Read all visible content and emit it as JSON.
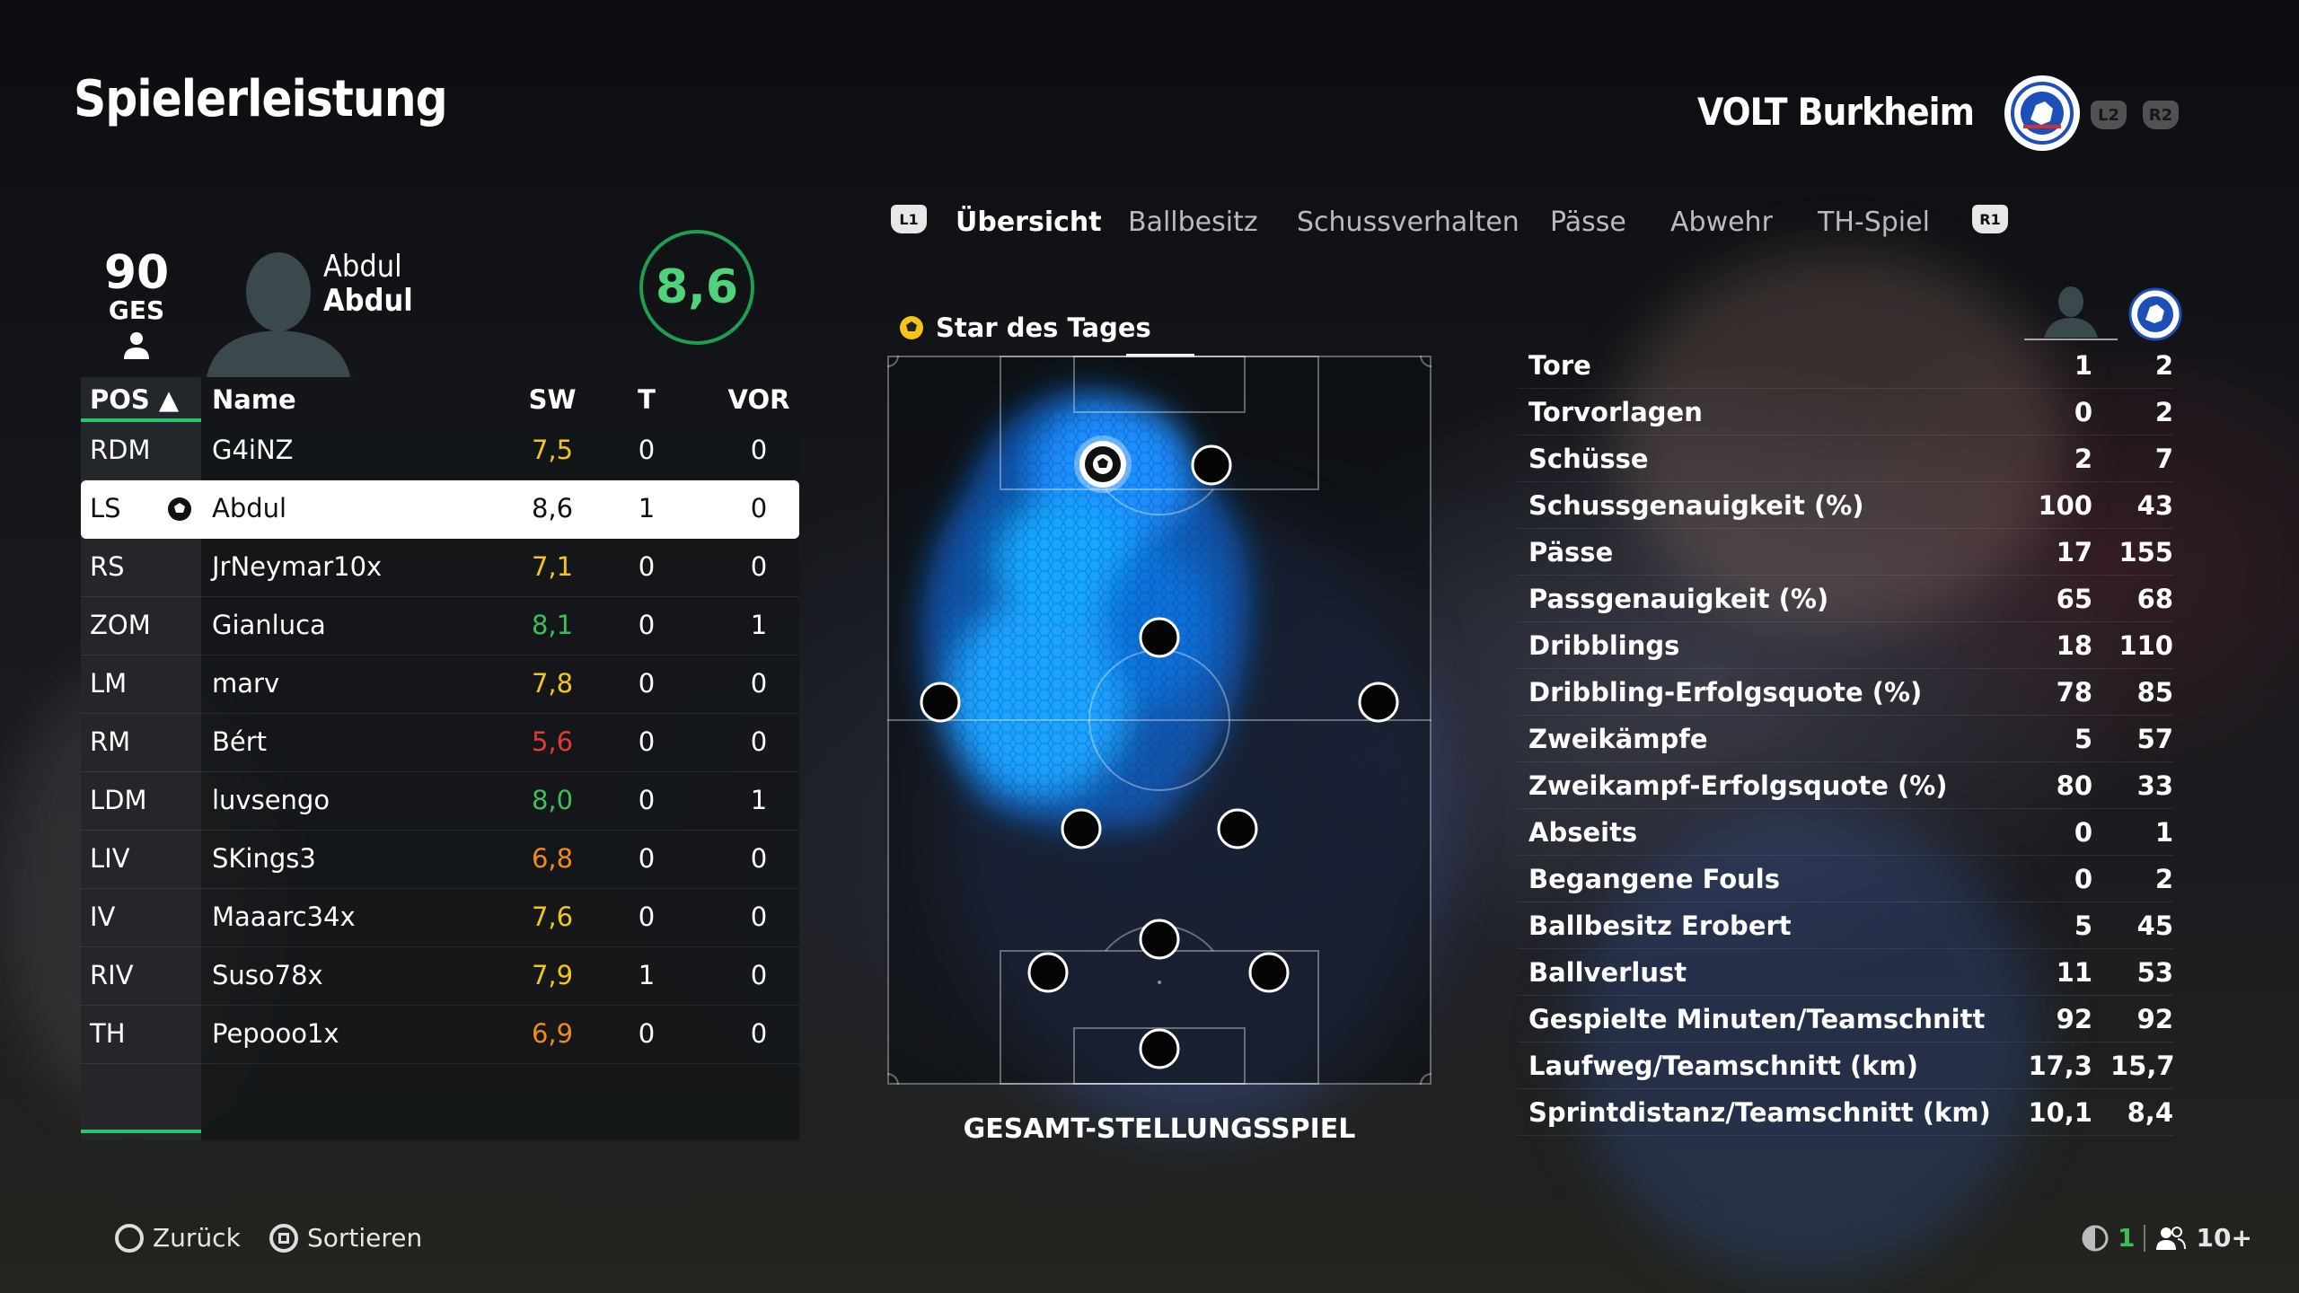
{
  "header": {
    "title": "Spielerleistung",
    "team_name": "VOLT Burkheim",
    "l2": "L2",
    "r2": "R2"
  },
  "player_card": {
    "overall": "90",
    "overall_label": "GES",
    "first_name": "Abdul",
    "last_name": "Abdul",
    "rating": "8,6"
  },
  "table": {
    "columns": {
      "pos": "POS ▲",
      "name": "Name",
      "sw": "SW",
      "t": "T",
      "vor": "VOR"
    },
    "rows": [
      {
        "pos": "RDM",
        "name": "G4iNZ",
        "sw": "7,5",
        "t": "0",
        "vor": "0",
        "color": "#f5c518"
      },
      {
        "pos": "LS",
        "name": "Abdul",
        "sw": "8,6",
        "t": "1",
        "vor": "0",
        "color": "#111111",
        "selected": true
      },
      {
        "pos": "RS",
        "name": "JrNeymar10x",
        "sw": "7,1",
        "t": "0",
        "vor": "0",
        "color": "#f5c518"
      },
      {
        "pos": "ZOM",
        "name": "Gianluca",
        "sw": "8,1",
        "t": "0",
        "vor": "1",
        "color": "#3cbf5a"
      },
      {
        "pos": "LM",
        "name": "marv",
        "sw": "7,8",
        "t": "0",
        "vor": "0",
        "color": "#f5c518"
      },
      {
        "pos": "RM",
        "name": "Bért",
        "sw": "5,6",
        "t": "0",
        "vor": "0",
        "color": "#e53935"
      },
      {
        "pos": "LDM",
        "name": "luvsengo",
        "sw": "8,0",
        "t": "0",
        "vor": "1",
        "color": "#3cbf5a"
      },
      {
        "pos": "LIV",
        "name": "SKings3",
        "sw": "6,8",
        "t": "0",
        "vor": "0",
        "color": "#f08a1c"
      },
      {
        "pos": "IV",
        "name": "Maaarc34x",
        "sw": "7,6",
        "t": "0",
        "vor": "0",
        "color": "#f5c518"
      },
      {
        "pos": "RIV",
        "name": "Suso78x",
        "sw": "7,9",
        "t": "1",
        "vor": "0",
        "color": "#f5c518"
      },
      {
        "pos": "TH",
        "name": "Pepooo1x",
        "sw": "6,9",
        "t": "0",
        "vor": "0",
        "color": "#f08a1c"
      }
    ]
  },
  "tabs": {
    "l1": "L1",
    "r1": "R1",
    "items": [
      "Übersicht",
      "Ballbesitz",
      "Schussverhalten",
      "Pässe",
      "Abwehr",
      "TH-Spiel"
    ]
  },
  "pitch": {
    "star_label": "Star des Tages",
    "caption": "GESAMT-STELLUNGSSPIEL"
  },
  "stats": [
    {
      "label": "Tore",
      "player": "1",
      "team": "2"
    },
    {
      "label": "Torvorlagen",
      "player": "0",
      "team": "2"
    },
    {
      "label": "Schüsse",
      "player": "2",
      "team": "7"
    },
    {
      "label": "Schussgenauigkeit (%)",
      "player": "100",
      "team": "43"
    },
    {
      "label": "Pässe",
      "player": "17",
      "team": "155"
    },
    {
      "label": "Passgenauigkeit (%)",
      "player": "65",
      "team": "68"
    },
    {
      "label": "Dribblings",
      "player": "18",
      "team": "110"
    },
    {
      "label": "Dribbling-Erfolgsquote (%)",
      "player": "78",
      "team": "85"
    },
    {
      "label": "Zweikämpfe",
      "player": "5",
      "team": "57"
    },
    {
      "label": "Zweikampf-Erfolgsquote (%)",
      "player": "80",
      "team": "33"
    },
    {
      "label": "Abseits",
      "player": "0",
      "team": "1"
    },
    {
      "label": "Begangene Fouls",
      "player": "0",
      "team": "2"
    },
    {
      "label": "Ballbesitz Erobert",
      "player": "5",
      "team": "45"
    },
    {
      "label": "Ballverlust",
      "player": "11",
      "team": "53"
    },
    {
      "label": "Gespielte Minuten/Teamschnitt",
      "player": "92",
      "team": "92"
    },
    {
      "label": "Laufweg/Teamschnitt (km)",
      "player": "17,3",
      "team": "15,7"
    },
    {
      "label": "Sprintdistanz/Teamschnitt (km)",
      "player": "10,1",
      "team": "8,4"
    }
  ],
  "footer": {
    "back": "Zurück",
    "sort": "Sortieren",
    "count": "1",
    "players": "10+"
  }
}
